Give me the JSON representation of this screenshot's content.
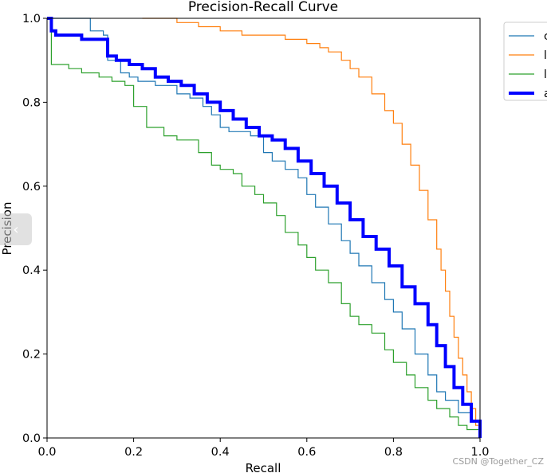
{
  "chart_data": {
    "type": "line",
    "title": "Precision-Recall Curve",
    "xlabel": "Recall",
    "ylabel": "Precision",
    "xlim": [
      0,
      1
    ],
    "ylim": [
      0,
      1
    ],
    "x_ticks": [
      "0.0",
      "0.2",
      "0.4",
      "0.6",
      "0.8",
      "1.0"
    ],
    "y_ticks": [
      "0.0",
      "0.2",
      "0.4",
      "0.6",
      "0.8",
      "1.0"
    ],
    "legend_position": "outside-top-right",
    "series": [
      {
        "name": "c",
        "color": "#1f77b4",
        "width": 1.2,
        "x": [
          0.0,
          0.05,
          0.08,
          0.1,
          0.13,
          0.14,
          0.17,
          0.19,
          0.21,
          0.25,
          0.3,
          0.33,
          0.36,
          0.38,
          0.4,
          0.42,
          0.45,
          0.47,
          0.5,
          0.52,
          0.55,
          0.58,
          0.6,
          0.62,
          0.65,
          0.68,
          0.7,
          0.72,
          0.75,
          0.78,
          0.8,
          0.82,
          0.85,
          0.88,
          0.9,
          0.92,
          0.95,
          0.98,
          1.0
        ],
        "y": [
          1.0,
          1.0,
          1.0,
          0.97,
          0.96,
          0.9,
          0.87,
          0.86,
          0.85,
          0.84,
          0.82,
          0.81,
          0.79,
          0.77,
          0.74,
          0.73,
          0.73,
          0.72,
          0.68,
          0.66,
          0.64,
          0.62,
          0.58,
          0.55,
          0.51,
          0.47,
          0.44,
          0.41,
          0.37,
          0.33,
          0.3,
          0.26,
          0.2,
          0.15,
          0.11,
          0.09,
          0.06,
          0.04,
          0.0
        ]
      },
      {
        "name": "l",
        "color": "#ff7f0e",
        "width": 1.2,
        "x": [
          0.22,
          0.3,
          0.35,
          0.4,
          0.45,
          0.5,
          0.55,
          0.6,
          0.63,
          0.65,
          0.68,
          0.7,
          0.72,
          0.75,
          0.78,
          0.8,
          0.82,
          0.84,
          0.86,
          0.88,
          0.9,
          0.91,
          0.92,
          0.93,
          0.94,
          0.95,
          0.96,
          0.97,
          0.98,
          0.99,
          1.0
        ],
        "y": [
          1.0,
          0.99,
          0.98,
          0.97,
          0.96,
          0.96,
          0.95,
          0.94,
          0.93,
          0.92,
          0.9,
          0.88,
          0.86,
          0.82,
          0.78,
          0.75,
          0.7,
          0.65,
          0.59,
          0.52,
          0.45,
          0.4,
          0.35,
          0.29,
          0.24,
          0.19,
          0.15,
          0.11,
          0.07,
          0.03,
          0.0
        ]
      },
      {
        "name": "l",
        "color": "#2ca02c",
        "width": 1.2,
        "x": [
          0.0,
          0.01,
          0.05,
          0.08,
          0.12,
          0.15,
          0.18,
          0.2,
          0.23,
          0.27,
          0.3,
          0.35,
          0.38,
          0.4,
          0.43,
          0.45,
          0.48,
          0.5,
          0.53,
          0.55,
          0.58,
          0.6,
          0.62,
          0.65,
          0.68,
          0.7,
          0.72,
          0.75,
          0.78,
          0.8,
          0.83,
          0.85,
          0.88,
          0.9,
          0.93,
          0.95,
          0.97,
          1.0
        ],
        "y": [
          1.0,
          0.89,
          0.88,
          0.87,
          0.86,
          0.85,
          0.84,
          0.79,
          0.74,
          0.72,
          0.71,
          0.68,
          0.65,
          0.64,
          0.63,
          0.6,
          0.58,
          0.56,
          0.53,
          0.49,
          0.46,
          0.43,
          0.4,
          0.37,
          0.32,
          0.29,
          0.27,
          0.25,
          0.21,
          0.18,
          0.15,
          0.12,
          0.09,
          0.07,
          0.05,
          0.03,
          0.02,
          0.0
        ]
      },
      {
        "name": "a",
        "color": "#0000ff",
        "width": 4,
        "x": [
          0.0,
          0.01,
          0.02,
          0.05,
          0.08,
          0.11,
          0.14,
          0.16,
          0.19,
          0.22,
          0.25,
          0.28,
          0.31,
          0.34,
          0.37,
          0.4,
          0.43,
          0.46,
          0.49,
          0.52,
          0.55,
          0.58,
          0.61,
          0.64,
          0.67,
          0.7,
          0.73,
          0.76,
          0.79,
          0.82,
          0.85,
          0.88,
          0.9,
          0.92,
          0.94,
          0.96,
          0.98,
          1.0
        ],
        "y": [
          1.0,
          0.97,
          0.96,
          0.96,
          0.95,
          0.95,
          0.91,
          0.9,
          0.89,
          0.88,
          0.86,
          0.85,
          0.84,
          0.82,
          0.8,
          0.78,
          0.76,
          0.74,
          0.72,
          0.71,
          0.69,
          0.66,
          0.63,
          0.6,
          0.56,
          0.52,
          0.48,
          0.45,
          0.41,
          0.36,
          0.32,
          0.27,
          0.22,
          0.17,
          0.12,
          0.08,
          0.04,
          0.0
        ]
      }
    ]
  },
  "watermark": "CSDN @Together_CZ",
  "side_tab_glyph": "‹"
}
